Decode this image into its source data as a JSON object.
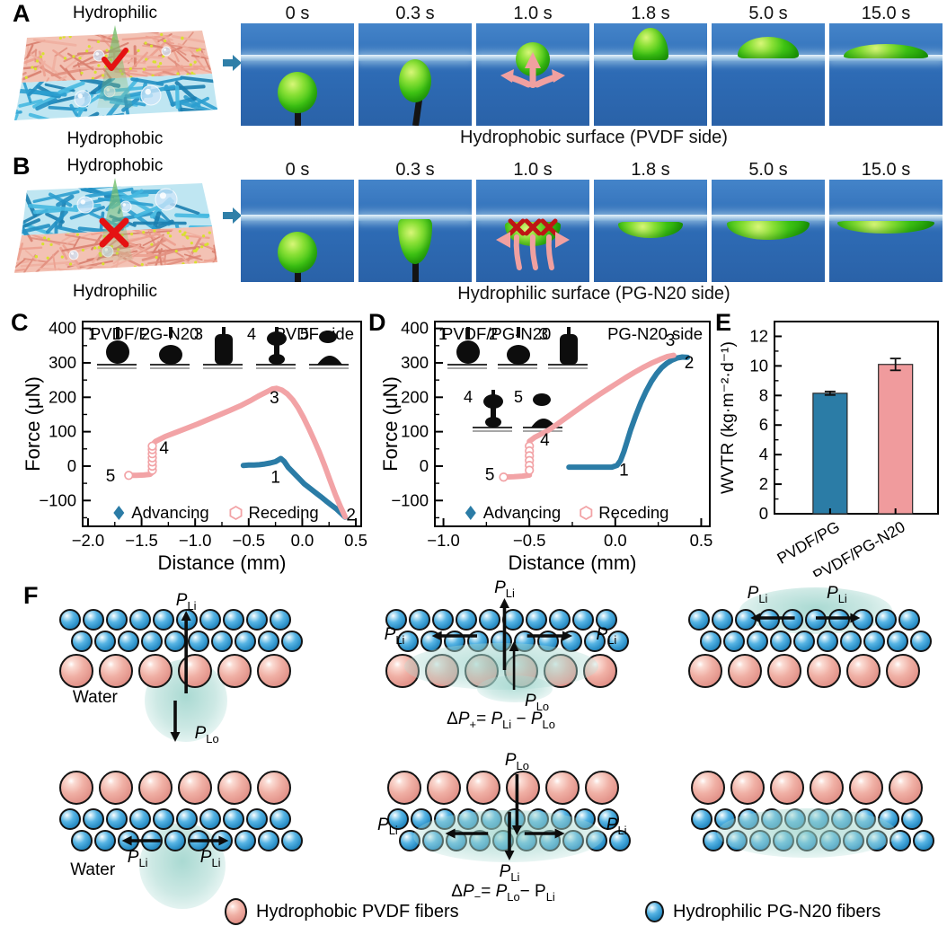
{
  "figure": {
    "panelA": {
      "label": "A",
      "schematic": {
        "top": "Hydrophilic",
        "bottom": "Hydrophobic",
        "mark": "check"
      },
      "frames": [
        {
          "time": "0 s",
          "state": "pendant"
        },
        {
          "time": "0.3 s",
          "state": "touch"
        },
        {
          "time": "1.0 s",
          "state": "passing"
        },
        {
          "time": "1.8 s",
          "state": "sessile"
        },
        {
          "time": "5.0 s",
          "state": "dome"
        },
        {
          "time": "15.0 s",
          "state": "lens"
        }
      ],
      "caption": "Hydrophobic surface (PVDF side)"
    },
    "panelB": {
      "label": "B",
      "schematic": {
        "top": "Hydrophobic",
        "bottom": "Hydrophilic",
        "mark": "cross"
      },
      "frames": [
        {
          "time": "0 s",
          "state": "pendant"
        },
        {
          "time": "0.3 s",
          "state": "touch-b"
        },
        {
          "time": "1.0 s",
          "state": "blocked"
        },
        {
          "time": "1.8 s",
          "state": "lens-sm"
        },
        {
          "time": "5.0 s",
          "state": "lens-md"
        },
        {
          "time": "15.0 s",
          "state": "lens-lg"
        }
      ],
      "caption": "Hydrophilic surface (PG-N20 side)"
    },
    "panelC_label": "C",
    "panelD_label": "D",
    "panelE_label": "E",
    "panelF": {
      "label": "F",
      "water_label": "Water",
      "p_inner": "<i>P</i><sub>Li</sub>",
      "p_outer": "<i>P</i><sub>Lo</sub>",
      "eq_plus": "Δ<i>P</i><sub>+</sub>= <i>P</i><sub>Li</sub> − <i>P</i><sub>Lo</sub>",
      "eq_minus": "Δ<i>P</i><sub>−</sub>= <i>P</i><sub>Lo</sub>− P<sub>Li</sub>",
      "diagrams": [
        {
          "rows": [
            [
              "blue",
              10
            ],
            [
              "blue",
              10
            ],
            [
              "pink",
              6
            ]
          ],
          "water": "droplet-below",
          "labels": [
            "PLi up",
            "PLo down",
            "Water"
          ]
        },
        {
          "rows": [
            [
              "blue",
              10
            ],
            [
              "blue",
              10
            ],
            [
              "pink",
              6
            ]
          ],
          "water": "spread-at-interface",
          "labels": [
            "PLi up",
            "PLi left",
            "PLi right",
            "PLo"
          ],
          "equation": "plus"
        },
        {
          "rows": [
            [
              "blue",
              10
            ],
            [
              "blue",
              10
            ],
            [
              "pink",
              6
            ]
          ],
          "water": "spread-on-top",
          "labels": [
            "PLi left",
            "PLi right"
          ]
        },
        {
          "rows": [
            [
              "pink",
              6
            ],
            [
              "blue",
              10
            ],
            [
              "blue",
              10
            ]
          ],
          "water": "droplet-below",
          "labels": [
            "PLi left",
            "PLi right",
            "Water"
          ]
        },
        {
          "rows": [
            [
              "pink",
              6
            ],
            [
              "blue",
              10
            ],
            [
              "blue",
              10
            ]
          ],
          "water": "spread-in-hydrophilic",
          "labels": [
            "PLo down",
            "PLi down",
            "PLi left",
            "PLi right"
          ],
          "equation": "minus"
        },
        {
          "rows": [
            [
              "pink",
              6
            ],
            [
              "blue",
              10
            ],
            [
              "blue",
              10
            ]
          ],
          "water": "spread-in-hydrophilic",
          "labels": []
        }
      ],
      "legend": [
        {
          "swatch": "pink-sphere",
          "label": "Hydrophobic PVDF fibers"
        },
        {
          "swatch": "blue-sphere",
          "label": "Hydrophilic PG-N20 fibers"
        }
      ]
    }
  },
  "chart_data": [
    {
      "id": "C",
      "type": "scatter",
      "inner_label_left": "PVDF/PG-N20",
      "inner_label_right": "PVDF side",
      "xlabel": "Distance (mm)",
      "ylabel": "Force (μN)",
      "xlim": [
        -2.05,
        0.55
      ],
      "ylim": [
        -175,
        420
      ],
      "xtick_vals": [
        -2.0,
        -1.5,
        -1.0,
        -0.5,
        0.0,
        0.5
      ],
      "xtick_labels": [
        "−2.0",
        "−1.5",
        "−1.0",
        "−0.5",
        "0.0",
        "0.5"
      ],
      "xminor": [
        -1.75,
        -1.25,
        -0.75,
        -0.25,
        0.25
      ],
      "ytick_vals": [
        -100,
        0,
        100,
        200,
        300,
        400
      ],
      "ytick_labels": [
        "−100",
        "0",
        "100",
        "200",
        "300",
        "400"
      ],
      "yminor": [
        -150,
        -50,
        50,
        150,
        250,
        350
      ],
      "series": [
        {
          "name": "Advancing",
          "color": "#2b7ca6",
          "marker": "diamond",
          "points": [
            [
              -0.55,
              2
            ],
            [
              -0.5,
              3
            ],
            [
              -0.45,
              3
            ],
            [
              -0.4,
              4
            ],
            [
              -0.35,
              6
            ],
            [
              -0.3,
              9
            ],
            [
              -0.25,
              13
            ],
            [
              -0.2,
              22
            ],
            [
              -0.17,
              14
            ],
            [
              -0.13,
              -4
            ],
            [
              -0.08,
              -20
            ],
            [
              -0.03,
              -36
            ],
            [
              0.02,
              -52
            ],
            [
              0.07,
              -64
            ],
            [
              0.12,
              -76
            ],
            [
              0.17,
              -88
            ],
            [
              0.22,
              -101
            ],
            [
              0.27,
              -113
            ],
            [
              0.32,
              -125
            ],
            [
              0.36,
              -136
            ],
            [
              0.4,
              -148
            ]
          ]
        },
        {
          "name": "Receding",
          "color": "#f2a3a6",
          "marker": "open-hexagon",
          "points": [
            [
              -1.62,
              -27
            ],
            [
              -1.55,
              -27
            ],
            [
              -1.48,
              -26
            ],
            [
              -1.42,
              -24
            ],
            [
              -1.4,
              -18
            ],
            [
              -1.4,
              62
            ],
            [
              -1.37,
              72
            ],
            [
              -1.28,
              86
            ],
            [
              -1.18,
              98
            ],
            [
              -1.08,
              110
            ],
            [
              -0.98,
              122
            ],
            [
              -0.88,
              135
            ],
            [
              -0.78,
              148
            ],
            [
              -0.68,
              161
            ],
            [
              -0.58,
              175
            ],
            [
              -0.48,
              191
            ],
            [
              -0.4,
              205
            ],
            [
              -0.33,
              216
            ],
            [
              -0.28,
              224
            ],
            [
              -0.24,
              226
            ],
            [
              -0.19,
              221
            ],
            [
              -0.14,
              210
            ],
            [
              -0.09,
              193
            ],
            [
              -0.04,
              170
            ],
            [
              0.01,
              142
            ],
            [
              0.06,
              110
            ],
            [
              0.11,
              76
            ],
            [
              0.16,
              40
            ],
            [
              0.21,
              0
            ],
            [
              0.26,
              -42
            ],
            [
              0.31,
              -84
            ],
            [
              0.36,
              -120
            ],
            [
              0.4,
              -147
            ]
          ],
          "open_markers": [
            [
              -1.4,
              -12
            ],
            [
              -1.4,
              0
            ],
            [
              -1.4,
              12
            ],
            [
              -1.4,
              24
            ],
            [
              -1.4,
              36
            ],
            [
              -1.4,
              48
            ],
            [
              -1.4,
              58
            ],
            [
              -1.62,
              -27
            ]
          ]
        }
      ],
      "point_labels": [
        {
          "t": "1",
          "x": -0.25,
          "y": -48
        },
        {
          "t": "2",
          "x": 0.455,
          "y": -158
        },
        {
          "t": "3",
          "x": -0.26,
          "y": 183
        },
        {
          "t": "4",
          "x": -1.29,
          "y": 36
        },
        {
          "t": "5",
          "x": -1.79,
          "y": -44
        }
      ],
      "insets": {
        "numbers": [
          "1",
          "2",
          "3",
          "4",
          "5"
        ],
        "layout": "row"
      }
    },
    {
      "id": "D",
      "type": "scatter",
      "inner_label_left": "PVDF/PG-N20",
      "inner_label_right": "PG-N20 side",
      "xlabel": "Distance (mm)",
      "ylabel": "Force (μN)",
      "xlim": [
        -1.05,
        0.55
      ],
      "ylim": [
        -175,
        420
      ],
      "xtick_vals": [
        -1.0,
        -0.5,
        0.0,
        0.5
      ],
      "xtick_labels": [
        "−1.0",
        "−0.5",
        "0.0",
        "0.5"
      ],
      "xminor": [
        -0.75,
        -0.25,
        0.25
      ],
      "ytick_vals": [
        -100,
        0,
        100,
        200,
        300,
        400
      ],
      "ytick_labels": [
        "−100",
        "0",
        "100",
        "200",
        "300",
        "400"
      ],
      "yminor": [
        -150,
        -50,
        50,
        150,
        250,
        350
      ],
      "series": [
        {
          "name": "Advancing",
          "color": "#2b7ca6",
          "marker": "diamond",
          "points": [
            [
              -0.27,
              -3
            ],
            [
              -0.22,
              -3
            ],
            [
              -0.17,
              -3
            ],
            [
              -0.12,
              -3
            ],
            [
              -0.07,
              -3
            ],
            [
              -0.02,
              -3
            ],
            [
              0.01,
              2
            ],
            [
              0.03,
              16
            ],
            [
              0.05,
              42
            ],
            [
              0.07,
              74
            ],
            [
              0.09,
              106
            ],
            [
              0.12,
              148
            ],
            [
              0.15,
              186
            ],
            [
              0.18,
              218
            ],
            [
              0.21,
              246
            ],
            [
              0.24,
              268
            ],
            [
              0.27,
              286
            ],
            [
              0.3,
              299
            ],
            [
              0.33,
              308
            ],
            [
              0.36,
              314
            ],
            [
              0.39,
              317
            ],
            [
              0.42,
              316
            ]
          ]
        },
        {
          "name": "Receding",
          "color": "#f2a3a6",
          "marker": "open-hexagon",
          "points": [
            [
              0.34,
              322
            ],
            [
              0.3,
              318
            ],
            [
              0.26,
              310
            ],
            [
              0.21,
              299
            ],
            [
              0.16,
              286
            ],
            [
              0.11,
              272
            ],
            [
              0.06,
              257
            ],
            [
              0.01,
              241
            ],
            [
              -0.04,
              225
            ],
            [
              -0.09,
              209
            ],
            [
              -0.14,
              192
            ],
            [
              -0.19,
              175
            ],
            [
              -0.24,
              157
            ],
            [
              -0.29,
              139
            ],
            [
              -0.34,
              121
            ],
            [
              -0.39,
              104
            ],
            [
              -0.44,
              91
            ],
            [
              -0.47,
              83
            ],
            [
              -0.5,
              72
            ],
            [
              -0.5,
              -26
            ],
            [
              -0.54,
              -29
            ],
            [
              -0.59,
              -31
            ],
            [
              -0.65,
              -32
            ]
          ],
          "open_markers": [
            [
              -0.5,
              58
            ],
            [
              -0.5,
              44
            ],
            [
              -0.5,
              30
            ],
            [
              -0.5,
              16
            ],
            [
              -0.5,
              2
            ],
            [
              -0.5,
              -12
            ],
            [
              -0.65,
              -32
            ]
          ]
        }
      ],
      "point_labels": [
        {
          "t": "1",
          "x": 0.05,
          "y": -28
        },
        {
          "t": "2",
          "x": 0.43,
          "y": 284
        },
        {
          "t": "3",
          "x": 0.32,
          "y": 350
        },
        {
          "t": "4",
          "x": -0.41,
          "y": 60
        },
        {
          "t": "5",
          "x": -0.73,
          "y": -40
        }
      ],
      "insets": {
        "numbers": [
          "1",
          "2",
          "3",
          "4",
          "5"
        ],
        "layout": "split"
      }
    },
    {
      "id": "E",
      "type": "bar",
      "categories": [
        "PVDF/PG",
        "PVDF/PG-N20"
      ],
      "values": [
        8.15,
        10.1
      ],
      "errors": [
        0.12,
        0.4
      ],
      "colors": [
        "#2b7ca6",
        "#f09b9d"
      ],
      "ylabel": "WVTR (kg·m⁻²·d⁻¹)",
      "ylim": [
        0,
        13
      ],
      "ytick_vals": [
        0,
        2,
        4,
        6,
        8,
        10,
        12
      ],
      "yminor": [
        1,
        3,
        5,
        7,
        9,
        11
      ]
    }
  ]
}
